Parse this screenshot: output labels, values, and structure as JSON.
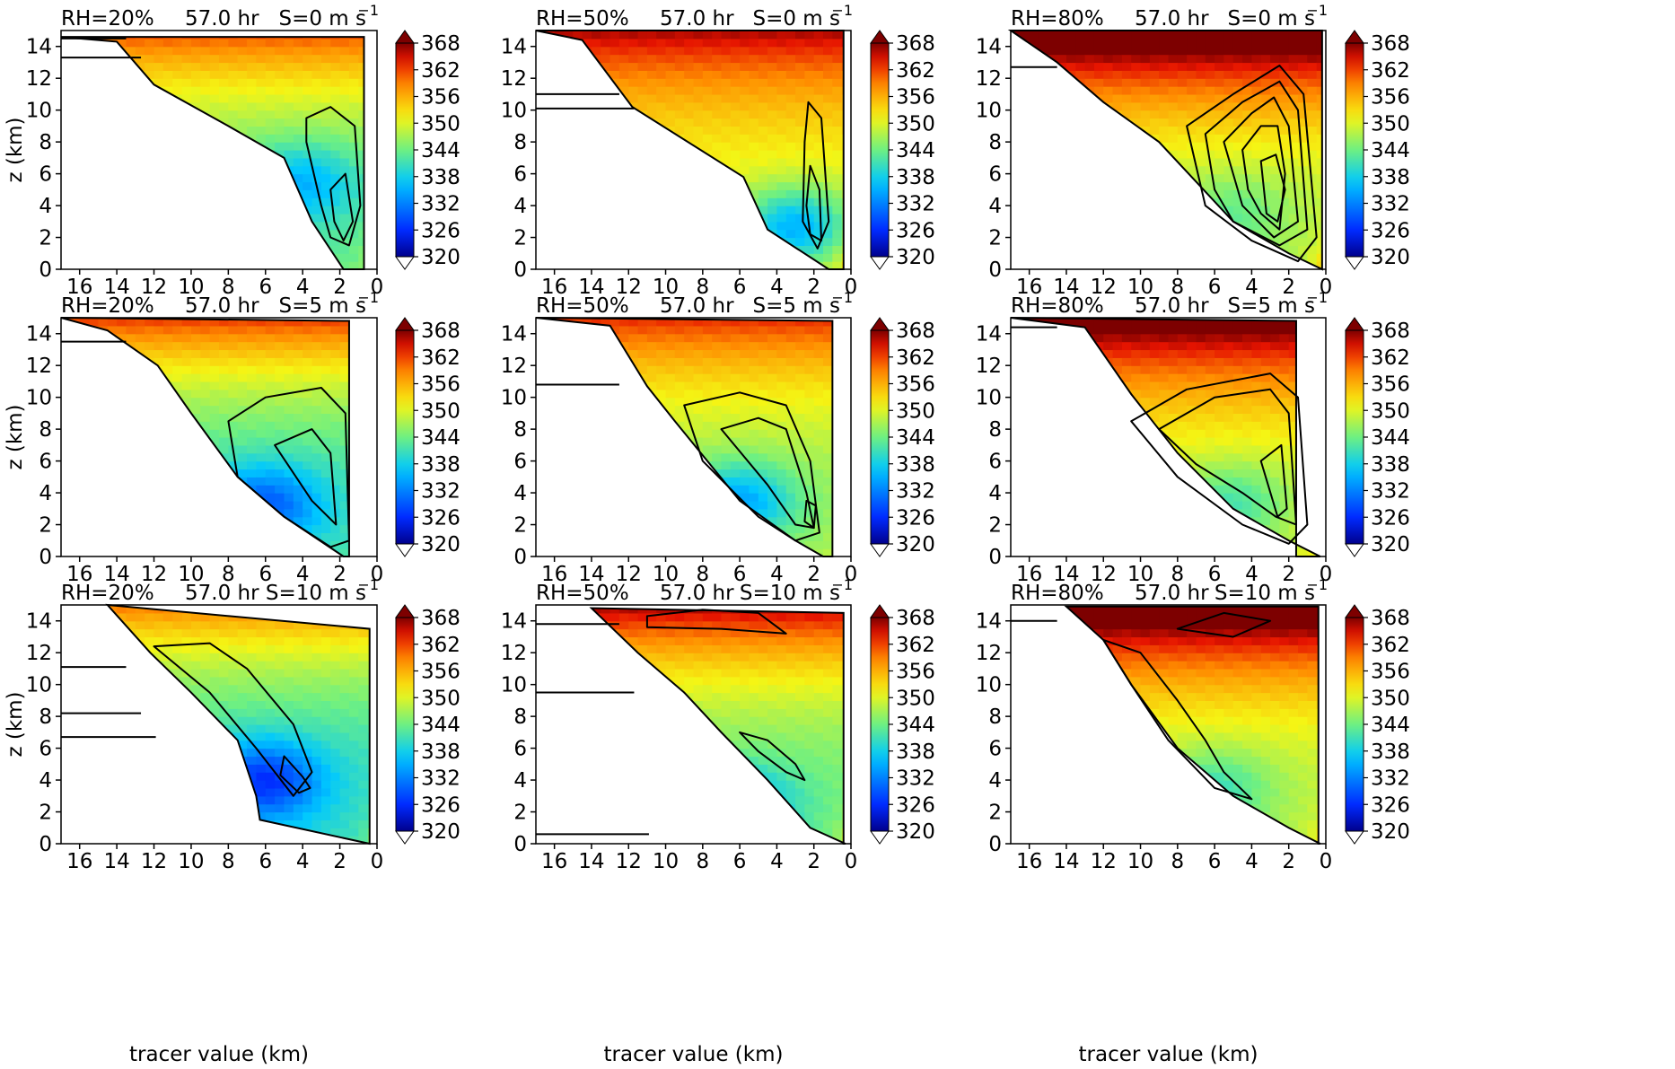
{
  "figure": {
    "xlabel": "tracer value (km)",
    "ylabel": "z (km)",
    "time_label": "57.0 hr",
    "colors": {
      "label_blue": "#0000ff",
      "label_red": "#ff0000",
      "contour": "#000000"
    }
  },
  "chart_data": [
    {
      "type": "heatmap",
      "row": 0,
      "col": 0,
      "rh_label": "RH=20%",
      "time_label": "57.0 hr",
      "shear_label": "S=0 m s",
      "xlim": [
        17,
        0
      ],
      "ylim": [
        0,
        15
      ],
      "xticks": [
        16,
        14,
        12,
        10,
        8,
        6,
        4,
        2,
        0
      ],
      "yticks": [
        0,
        2,
        4,
        6,
        8,
        10,
        12,
        14
      ],
      "colorbar_ticks": [
        320,
        326,
        332,
        338,
        344,
        350,
        356,
        362,
        368
      ],
      "colorbar_range": [
        320,
        368
      ]
    },
    {
      "type": "heatmap",
      "row": 0,
      "col": 1,
      "rh_label": "RH=50%",
      "time_label": "57.0 hr",
      "shear_label": "S=0 m s",
      "xlim": [
        17,
        0
      ],
      "ylim": [
        0,
        15
      ],
      "xticks": [
        16,
        14,
        12,
        10,
        8,
        6,
        4,
        2,
        0
      ],
      "yticks": [
        0,
        2,
        4,
        6,
        8,
        10,
        12,
        14
      ],
      "colorbar_ticks": [
        320,
        326,
        332,
        338,
        344,
        350,
        356,
        362,
        368
      ],
      "colorbar_range": [
        320,
        368
      ]
    },
    {
      "type": "heatmap",
      "row": 0,
      "col": 2,
      "rh_label": "RH=80%",
      "time_label": "57.0 hr",
      "shear_label": "S=0 m s",
      "xlim": [
        17,
        0
      ],
      "ylim": [
        0,
        15
      ],
      "xticks": [
        16,
        14,
        12,
        10,
        8,
        6,
        4,
        2,
        0
      ],
      "yticks": [
        0,
        2,
        4,
        6,
        8,
        10,
        12,
        14
      ],
      "colorbar_ticks": [
        320,
        326,
        332,
        338,
        344,
        350,
        356,
        362,
        368
      ],
      "colorbar_range": [
        320,
        368
      ]
    },
    {
      "type": "heatmap",
      "row": 1,
      "col": 0,
      "rh_label": "RH=20%",
      "time_label": "57.0 hr",
      "shear_label": "S=5 m s",
      "xlim": [
        17,
        0
      ],
      "ylim": [
        0,
        15
      ],
      "xticks": [
        16,
        14,
        12,
        10,
        8,
        6,
        4,
        2,
        0
      ],
      "yticks": [
        0,
        2,
        4,
        6,
        8,
        10,
        12,
        14
      ],
      "colorbar_ticks": [
        320,
        326,
        332,
        338,
        344,
        350,
        356,
        362,
        368
      ],
      "colorbar_range": [
        320,
        368
      ]
    },
    {
      "type": "heatmap",
      "row": 1,
      "col": 1,
      "rh_label": "RH=50%",
      "time_label": "57.0 hr",
      "shear_label": "S=5 m s",
      "xlim": [
        17,
        0
      ],
      "ylim": [
        0,
        15
      ],
      "xticks": [
        16,
        14,
        12,
        10,
        8,
        6,
        4,
        2,
        0
      ],
      "yticks": [
        0,
        2,
        4,
        6,
        8,
        10,
        12,
        14
      ],
      "colorbar_ticks": [
        320,
        326,
        332,
        338,
        344,
        350,
        356,
        362,
        368
      ],
      "colorbar_range": [
        320,
        368
      ]
    },
    {
      "type": "heatmap",
      "row": 1,
      "col": 2,
      "rh_label": "RH=80%",
      "time_label": "57.0 hr",
      "shear_label": "S=5 m s",
      "xlim": [
        17,
        0
      ],
      "ylim": [
        0,
        15
      ],
      "xticks": [
        16,
        14,
        12,
        10,
        8,
        6,
        4,
        2,
        0
      ],
      "yticks": [
        0,
        2,
        4,
        6,
        8,
        10,
        12,
        14
      ],
      "colorbar_ticks": [
        320,
        326,
        332,
        338,
        344,
        350,
        356,
        362,
        368
      ],
      "colorbar_range": [
        320,
        368
      ]
    },
    {
      "type": "heatmap",
      "row": 2,
      "col": 0,
      "rh_label": "RH=20%",
      "time_label": "57.0 hr",
      "shear_label": "S=10 m s",
      "xlim": [
        17,
        0
      ],
      "ylim": [
        0,
        15
      ],
      "xticks": [
        16,
        14,
        12,
        10,
        8,
        6,
        4,
        2,
        0
      ],
      "yticks": [
        0,
        2,
        4,
        6,
        8,
        10,
        12,
        14
      ],
      "colorbar_ticks": [
        320,
        326,
        332,
        338,
        344,
        350,
        356,
        362,
        368
      ],
      "colorbar_range": [
        320,
        368
      ]
    },
    {
      "type": "heatmap",
      "row": 2,
      "col": 1,
      "rh_label": "RH=50%",
      "time_label": "57.0 hr",
      "shear_label": "S=10 m s",
      "xlim": [
        17,
        0
      ],
      "ylim": [
        0,
        15
      ],
      "xticks": [
        16,
        14,
        12,
        10,
        8,
        6,
        4,
        2,
        0
      ],
      "yticks": [
        0,
        2,
        4,
        6,
        8,
        10,
        12,
        14
      ],
      "colorbar_ticks": [
        320,
        326,
        332,
        338,
        344,
        350,
        356,
        362,
        368
      ],
      "colorbar_range": [
        320,
        368
      ]
    },
    {
      "type": "heatmap",
      "row": 2,
      "col": 2,
      "rh_label": "RH=80%",
      "time_label": "57.0 hr",
      "shear_label": "S=10 m s",
      "xlim": [
        17,
        0
      ],
      "ylim": [
        0,
        15
      ],
      "xticks": [
        16,
        14,
        12,
        10,
        8,
        6,
        4,
        2,
        0
      ],
      "yticks": [
        0,
        2,
        4,
        6,
        8,
        10,
        12,
        14
      ],
      "colorbar_ticks": [
        320,
        326,
        332,
        338,
        344,
        350,
        356,
        362,
        368
      ],
      "colorbar_range": [
        320,
        368
      ]
    }
  ]
}
